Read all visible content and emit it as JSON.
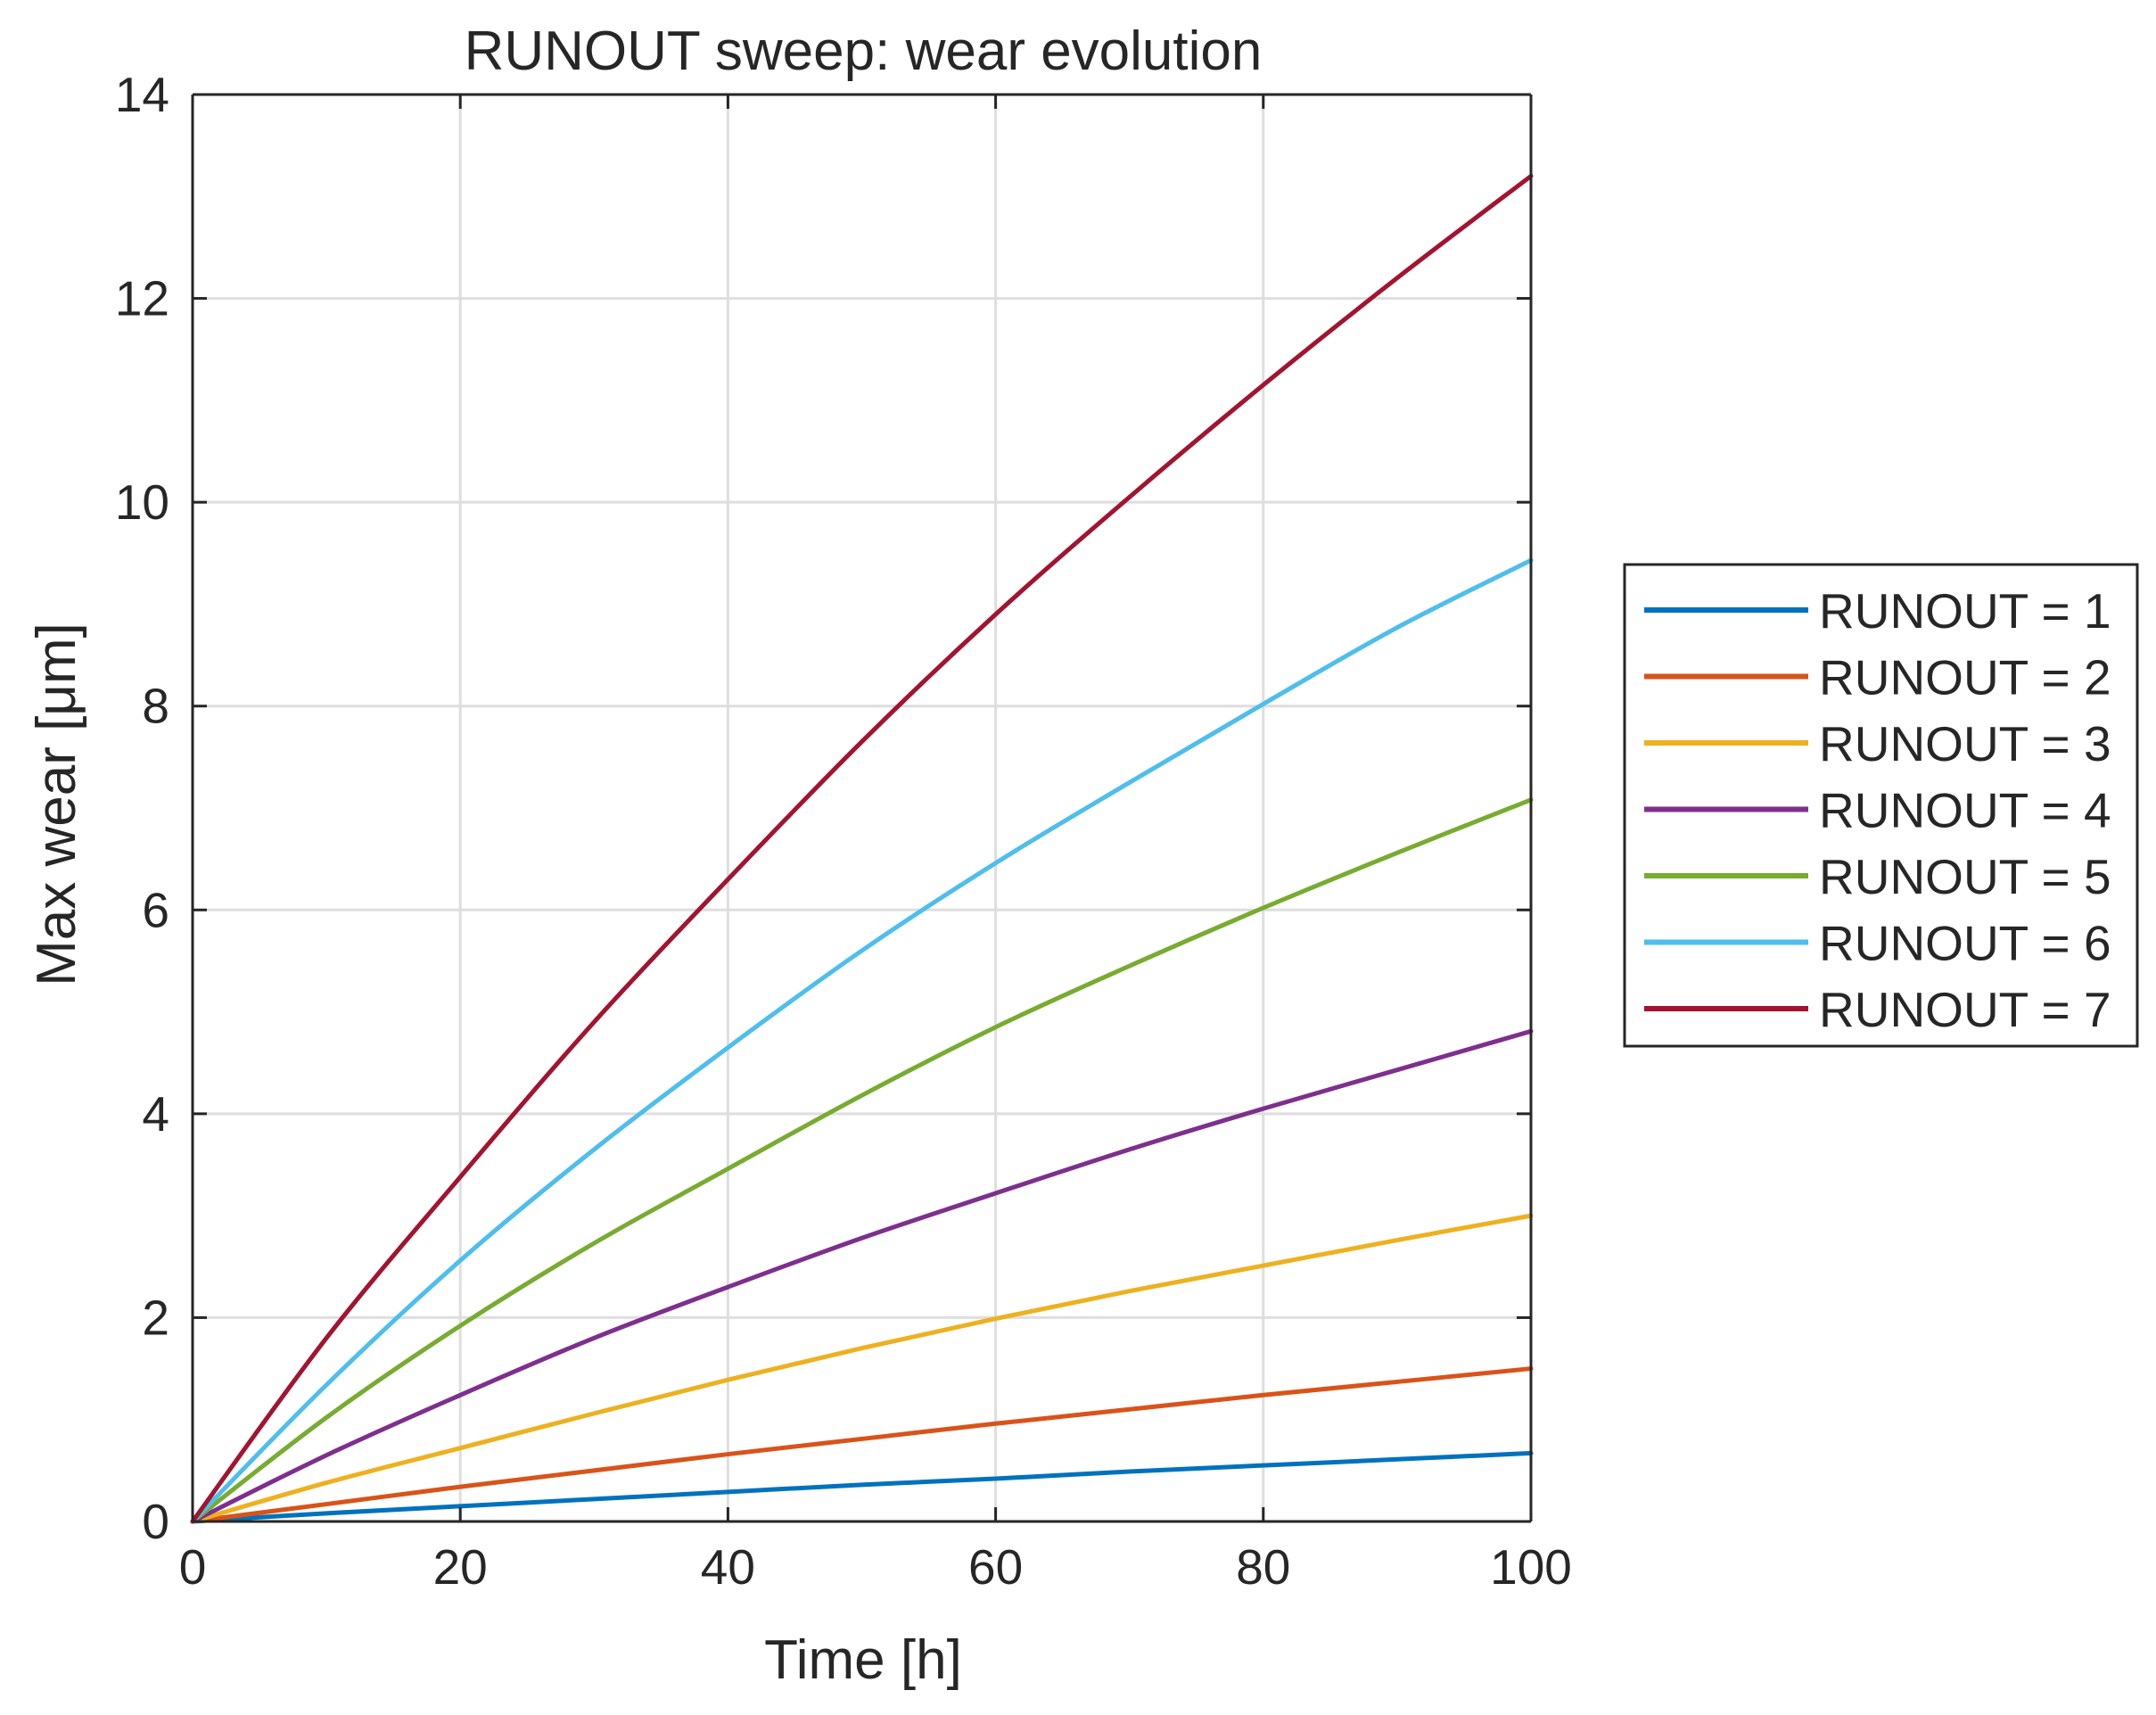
{
  "chart_data": {
    "type": "line",
    "title": "RUNOUT sweep: wear evolution",
    "xlabel": "Time [h]",
    "ylabel": "Max wear [μm]",
    "xlim": [
      0,
      100
    ],
    "ylim": [
      0,
      14
    ],
    "xticks": [
      0,
      20,
      40,
      60,
      80,
      100
    ],
    "yticks": [
      0,
      2,
      4,
      6,
      8,
      10,
      12,
      14
    ],
    "grid": true,
    "legend_position": "outside-right",
    "x": [
      0,
      10,
      20,
      30,
      40,
      50,
      60,
      70,
      80,
      90,
      100
    ],
    "series": [
      {
        "name": "RUNOUT = 1",
        "color": "#0072BD",
        "values": [
          0,
          0.08,
          0.15,
          0.22,
          0.29,
          0.36,
          0.42,
          0.49,
          0.55,
          0.61,
          0.67
        ]
      },
      {
        "name": "RUNOUT = 2",
        "color": "#D95319",
        "values": [
          0,
          0.17,
          0.34,
          0.5,
          0.66,
          0.81,
          0.96,
          1.1,
          1.24,
          1.37,
          1.5
        ]
      },
      {
        "name": "RUNOUT = 3",
        "color": "#EDB120",
        "values": [
          0,
          0.38,
          0.72,
          1.06,
          1.39,
          1.7,
          1.99,
          2.26,
          2.51,
          2.76,
          3.0
        ]
      },
      {
        "name": "RUNOUT = 4",
        "color": "#7E2F8E",
        "values": [
          0,
          0.65,
          1.24,
          1.8,
          2.3,
          2.78,
          3.22,
          3.65,
          4.05,
          4.43,
          4.81
        ]
      },
      {
        "name": "RUNOUT = 5",
        "color": "#77AC30",
        "values": [
          0,
          1.02,
          1.92,
          2.73,
          3.46,
          4.18,
          4.85,
          5.45,
          6.02,
          6.56,
          7.08
        ]
      },
      {
        "name": "RUNOUT = 6",
        "color": "#4DBEEE",
        "values": [
          0,
          1.34,
          2.56,
          3.65,
          4.65,
          5.6,
          6.46,
          7.25,
          8.02,
          8.77,
          9.43
        ]
      },
      {
        "name": "RUNOUT = 7",
        "color": "#A2142F",
        "values": [
          0,
          1.8,
          3.38,
          4.9,
          6.3,
          7.65,
          8.9,
          10.05,
          11.15,
          12.2,
          13.2
        ]
      }
    ]
  }
}
